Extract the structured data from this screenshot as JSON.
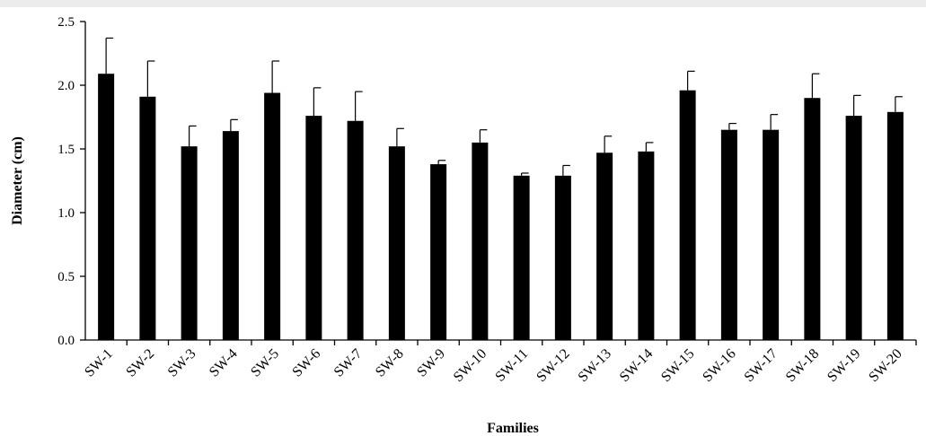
{
  "chart_data": {
    "type": "bar",
    "title": "",
    "xlabel": "Families",
    "ylabel": "Diameter (cm)",
    "ylim": [
      0,
      2.5
    ],
    "yticks": [
      "0.0",
      "0.5",
      "1.0",
      "1.5",
      "2.0",
      "2.5"
    ],
    "categories": [
      "SW-1",
      "SW-2",
      "SW-3",
      "SW-4",
      "SW-5",
      "SW-6",
      "SW-7",
      "SW-8",
      "SW-9",
      "SW-10",
      "SW-11",
      "SW-12",
      "SW-13",
      "SW-14",
      "SW-15",
      "SW-16",
      "SW-17",
      "SW-18",
      "SW-19",
      "SW-20"
    ],
    "values": [
      2.09,
      1.91,
      1.52,
      1.64,
      1.94,
      1.76,
      1.72,
      1.52,
      1.38,
      1.55,
      1.29,
      1.29,
      1.47,
      1.48,
      1.96,
      1.65,
      1.65,
      1.9,
      1.76,
      1.79
    ],
    "error": [
      0.28,
      0.28,
      0.16,
      0.09,
      0.25,
      0.22,
      0.23,
      0.14,
      0.03,
      0.1,
      0.02,
      0.08,
      0.13,
      0.07,
      0.15,
      0.05,
      0.12,
      0.19,
      0.16,
      0.12
    ],
    "grid": false,
    "legend": "none",
    "bar_color": "#000000"
  }
}
